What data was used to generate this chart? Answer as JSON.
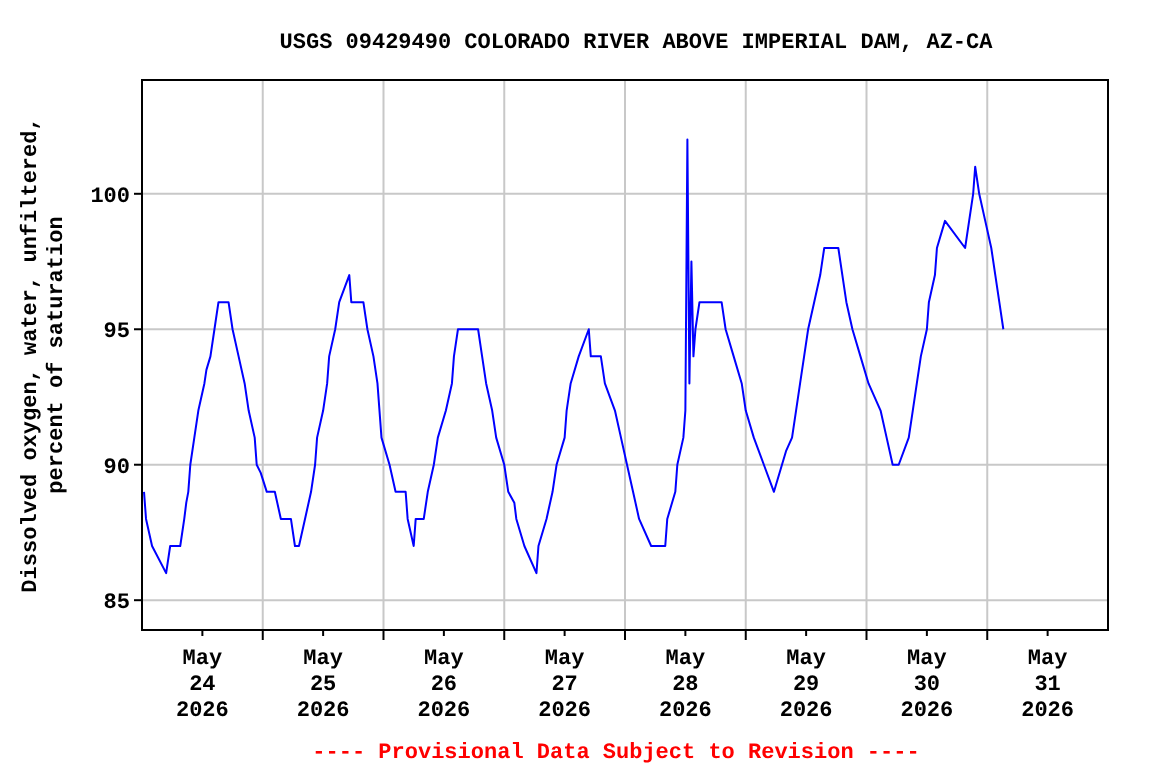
{
  "chart_data": {
    "type": "line",
    "title": "USGS 09429490 COLORADO RIVER ABOVE IMPERIAL DAM, AZ-CA",
    "ylabel": "Dissolved oxygen, water, unfiltered,\npercent of saturation",
    "annotations": [
      "---- Provisional Data Subject to Revision ----"
    ],
    "xlim": [
      "2026-05-24T00:00",
      "2026-06-01T00:00"
    ],
    "ylim": [
      83.9,
      104.2
    ],
    "yticks": [
      85,
      90,
      95,
      100
    ],
    "xticks": [
      {
        "value": "2026-05-24T12:00",
        "label": "May\n24\n2026"
      },
      {
        "value": "2026-05-25T00:00",
        "label": null
      },
      {
        "value": "2026-05-25T12:00",
        "label": "May\n25\n2026"
      },
      {
        "value": "2026-05-26T00:00",
        "label": null
      },
      {
        "value": "2026-05-26T12:00",
        "label": "May\n26\n2026"
      },
      {
        "value": "2026-05-27T00:00",
        "label": null
      },
      {
        "value": "2026-05-27T12:00",
        "label": "May\n27\n2026"
      },
      {
        "value": "2026-05-28T00:00",
        "label": null
      },
      {
        "value": "2026-05-28T12:00",
        "label": "May\n28\n2026"
      },
      {
        "value": "2026-05-29T00:00",
        "label": null
      },
      {
        "value": "2026-05-29T12:00",
        "label": "May\n29\n2026"
      },
      {
        "value": "2026-05-30T00:00",
        "label": null
      },
      {
        "value": "2026-05-30T12:00",
        "label": "May\n30\n2026"
      },
      {
        "value": "2026-05-31T00:00",
        "label": null
      },
      {
        "value": "2026-05-31T12:00",
        "label": "May\n31\n2026"
      }
    ],
    "grid": true,
    "marker": "none",
    "line_style": "solid",
    "series": [
      {
        "color": "#0000ff",
        "x": [
          "2026-05-24T00:24",
          "2026-05-24T00:48",
          "2026-05-24T02:00",
          "2026-05-24T04:48",
          "2026-05-24T05:36",
          "2026-05-24T07:36",
          "2026-05-24T08:24",
          "2026-05-24T08:48",
          "2026-05-24T09:12",
          "2026-05-24T09:36",
          "2026-05-24T10:24",
          "2026-05-24T11:12",
          "2026-05-24T12:24",
          "2026-05-24T12:48",
          "2026-05-24T13:36",
          "2026-05-24T14:24",
          "2026-05-24T15:12",
          "2026-05-24T17:12",
          "2026-05-24T18:00",
          "2026-05-24T19:12",
          "2026-05-24T20:24",
          "2026-05-24T21:12",
          "2026-05-24T22:24",
          "2026-05-24T22:48",
          "2026-05-24T23:36",
          "2026-05-25T00:48",
          "2026-05-25T02:24",
          "2026-05-25T03:36",
          "2026-05-25T05:36",
          "2026-05-25T06:24",
          "2026-05-25T07:12",
          "2026-05-25T08:24",
          "2026-05-25T09:36",
          "2026-05-25T10:24",
          "2026-05-25T10:48",
          "2026-05-25T12:00",
          "2026-05-25T12:48",
          "2026-05-25T13:12",
          "2026-05-25T14:24",
          "2026-05-25T15:12",
          "2026-05-25T17:12",
          "2026-05-25T17:36",
          "2026-05-25T20:00",
          "2026-05-25T20:48",
          "2026-05-25T22:00",
          "2026-05-25T22:48",
          "2026-05-25T23:36",
          "2026-05-26T01:12",
          "2026-05-26T02:24",
          "2026-05-26T04:24",
          "2026-05-26T04:48",
          "2026-05-26T06:00",
          "2026-05-26T06:24",
          "2026-05-26T08:00",
          "2026-05-26T08:48",
          "2026-05-26T10:00",
          "2026-05-26T10:48",
          "2026-05-26T12:24",
          "2026-05-26T13:36",
          "2026-05-26T14:00",
          "2026-05-26T14:48",
          "2026-05-26T18:48",
          "2026-05-26T19:36",
          "2026-05-26T20:24",
          "2026-05-26T21:36",
          "2026-05-26T22:24",
          "2026-05-27T00:00",
          "2026-05-27T00:48",
          "2026-05-27T02:00",
          "2026-05-27T02:24",
          "2026-05-27T04:00",
          "2026-05-27T06:24",
          "2026-05-27T06:48",
          "2026-05-27T08:24",
          "2026-05-27T09:36",
          "2026-05-27T10:24",
          "2026-05-27T12:00",
          "2026-05-27T12:24",
          "2026-05-27T13:12",
          "2026-05-27T14:48",
          "2026-05-27T16:48",
          "2026-05-27T17:12",
          "2026-05-27T19:12",
          "2026-05-27T20:00",
          "2026-05-27T22:00",
          "2026-05-27T23:12",
          "2026-05-28T00:24",
          "2026-05-28T01:36",
          "2026-05-28T02:48",
          "2026-05-28T05:12",
          "2026-05-28T08:00",
          "2026-05-28T08:24",
          "2026-05-28T10:00",
          "2026-05-28T10:24",
          "2026-05-28T11:36",
          "2026-05-28T12:00",
          "2026-05-28T12:24",
          "2026-05-28T12:48",
          "2026-05-28T13:12",
          "2026-05-28T13:36",
          "2026-05-28T14:00",
          "2026-05-28T14:48",
          "2026-05-28T19:12",
          "2026-05-28T20:00",
          "2026-05-28T21:36",
          "2026-05-28T23:12",
          "2026-05-29T00:00",
          "2026-05-29T01:36",
          "2026-05-29T03:36",
          "2026-05-29T05:36",
          "2026-05-29T07:12",
          "2026-05-29T08:00",
          "2026-05-29T09:12",
          "2026-05-29T10:00",
          "2026-05-29T10:48",
          "2026-05-29T11:36",
          "2026-05-29T12:24",
          "2026-05-29T13:36",
          "2026-05-29T14:48",
          "2026-05-29T15:36",
          "2026-05-29T18:24",
          "2026-05-29T19:12",
          "2026-05-29T20:00",
          "2026-05-29T21:12",
          "2026-05-29T22:48",
          "2026-05-30T00:24",
          "2026-05-30T02:48",
          "2026-05-30T04:00",
          "2026-05-30T05:12",
          "2026-05-30T06:24",
          "2026-05-30T08:24",
          "2026-05-30T09:12",
          "2026-05-30T10:00",
          "2026-05-30T10:48",
          "2026-05-30T12:00",
          "2026-05-30T12:24",
          "2026-05-30T13:36",
          "2026-05-30T14:00",
          "2026-05-30T15:36",
          "2026-05-30T19:36",
          "2026-05-30T20:24",
          "2026-05-30T21:12",
          "2026-05-30T21:36",
          "2026-05-30T22:24",
          "2026-05-30T23:36",
          "2026-05-31T00:48",
          "2026-05-31T01:36",
          "2026-05-31T02:24",
          "2026-05-31T03:12"
        ],
        "values": [
          89,
          88,
          87,
          86,
          87,
          87,
          88,
          88.6,
          89,
          90,
          91,
          92,
          93,
          93.5,
          94,
          95,
          96,
          96,
          95,
          94,
          93,
          92,
          91,
          90,
          89.7,
          89,
          89,
          88,
          88,
          87,
          87,
          88,
          89,
          90,
          91,
          92,
          93,
          94,
          95,
          96,
          97,
          96,
          96,
          95,
          94,
          93,
          91,
          90,
          89,
          89,
          88,
          87,
          88,
          88,
          89,
          90,
          91,
          92,
          93,
          94,
          95,
          95,
          94,
          93,
          92,
          91,
          90,
          89,
          88.6,
          88,
          87,
          86,
          87,
          88,
          89,
          90,
          91,
          92,
          93,
          94,
          95,
          94,
          94,
          93,
          92,
          91,
          90,
          89,
          88,
          87,
          87,
          88,
          89,
          90,
          91,
          92,
          102,
          93,
          97.5,
          94,
          95,
          96,
          96,
          95,
          94,
          93,
          92,
          91,
          90,
          89,
          90,
          90.5,
          91,
          92,
          93,
          94,
          95,
          96,
          97,
          98,
          98,
          97,
          96,
          95,
          94,
          93,
          92,
          91,
          90,
          90,
          91,
          92,
          93,
          94,
          95,
          96,
          97,
          98,
          99,
          98,
          99,
          100,
          101,
          100,
          99,
          98,
          97,
          96,
          95
        ]
      }
    ]
  }
}
